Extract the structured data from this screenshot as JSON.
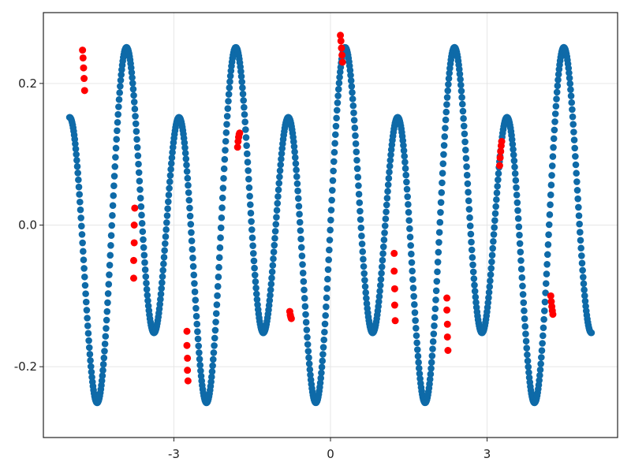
{
  "chart_data": {
    "type": "scatter",
    "title": "",
    "xlabel": "",
    "ylabel": "",
    "xlim": [
      -5.5,
      5.5
    ],
    "ylim": [
      -0.3,
      0.3
    ],
    "grid": true,
    "x_ticks": [
      {
        "value": -3,
        "label": "-3"
      },
      {
        "value": 0,
        "label": "0"
      },
      {
        "value": 3,
        "label": "3"
      }
    ],
    "y_ticks": [
      {
        "value": -0.2,
        "label": "-0.2"
      },
      {
        "value": 0.0,
        "label": "0.0"
      },
      {
        "value": 0.2,
        "label": "0.2"
      }
    ],
    "series": [
      {
        "role": "all_points",
        "color": "#0e6aa8",
        "generator": {
          "x_start": -5.0,
          "x_end": 5.0,
          "count": 1000,
          "components": [
            {
              "amplitude": 0.2,
              "frequency": 6.0
            },
            {
              "amplitude": 0.07,
              "frequency": 3.0
            }
          ]
        }
      },
      {
        "role": "highlighted",
        "color": "#ff0000",
        "points": [
          {
            "x": -4.75,
            "y": 0.247
          },
          {
            "x": -4.74,
            "y": 0.236
          },
          {
            "x": -4.73,
            "y": 0.222
          },
          {
            "x": -4.72,
            "y": 0.207
          },
          {
            "x": -4.71,
            "y": 0.19
          },
          {
            "x": -3.75,
            "y": 0.024
          },
          {
            "x": -3.76,
            "y": 0.0
          },
          {
            "x": -3.76,
            "y": -0.025
          },
          {
            "x": -3.77,
            "y": -0.05
          },
          {
            "x": -3.77,
            "y": -0.075
          },
          {
            "x": -2.75,
            "y": -0.15
          },
          {
            "x": -2.75,
            "y": -0.17
          },
          {
            "x": -2.74,
            "y": -0.188
          },
          {
            "x": -2.74,
            "y": -0.205
          },
          {
            "x": -2.73,
            "y": -0.22
          },
          {
            "x": -1.78,
            "y": 0.11
          },
          {
            "x": -1.77,
            "y": 0.118
          },
          {
            "x": -1.76,
            "y": 0.124
          },
          {
            "x": -1.75,
            "y": 0.128
          },
          {
            "x": -1.74,
            "y": 0.13
          },
          {
            "x": -0.78,
            "y": -0.122
          },
          {
            "x": -0.77,
            "y": -0.127
          },
          {
            "x": -0.76,
            "y": -0.13
          },
          {
            "x": -0.75,
            "y": -0.132
          },
          {
            "x": 0.19,
            "y": 0.268
          },
          {
            "x": 0.2,
            "y": 0.26
          },
          {
            "x": 0.21,
            "y": 0.25
          },
          {
            "x": 0.22,
            "y": 0.24
          },
          {
            "x": 0.23,
            "y": 0.23
          },
          {
            "x": 1.22,
            "y": -0.04
          },
          {
            "x": 1.22,
            "y": -0.065
          },
          {
            "x": 1.23,
            "y": -0.09
          },
          {
            "x": 1.23,
            "y": -0.113
          },
          {
            "x": 1.24,
            "y": -0.135
          },
          {
            "x": 2.23,
            "y": -0.103
          },
          {
            "x": 2.23,
            "y": -0.12
          },
          {
            "x": 2.24,
            "y": -0.14
          },
          {
            "x": 2.24,
            "y": -0.158
          },
          {
            "x": 2.25,
            "y": -0.177
          },
          {
            "x": 3.24,
            "y": 0.084
          },
          {
            "x": 3.25,
            "y": 0.095
          },
          {
            "x": 3.26,
            "y": 0.104
          },
          {
            "x": 3.27,
            "y": 0.112
          },
          {
            "x": 3.28,
            "y": 0.118
          },
          {
            "x": 4.22,
            "y": -0.1
          },
          {
            "x": 4.23,
            "y": -0.108
          },
          {
            "x": 4.24,
            "y": -0.115
          },
          {
            "x": 4.25,
            "y": -0.121
          },
          {
            "x": 4.26,
            "y": -0.126
          }
        ]
      }
    ]
  }
}
